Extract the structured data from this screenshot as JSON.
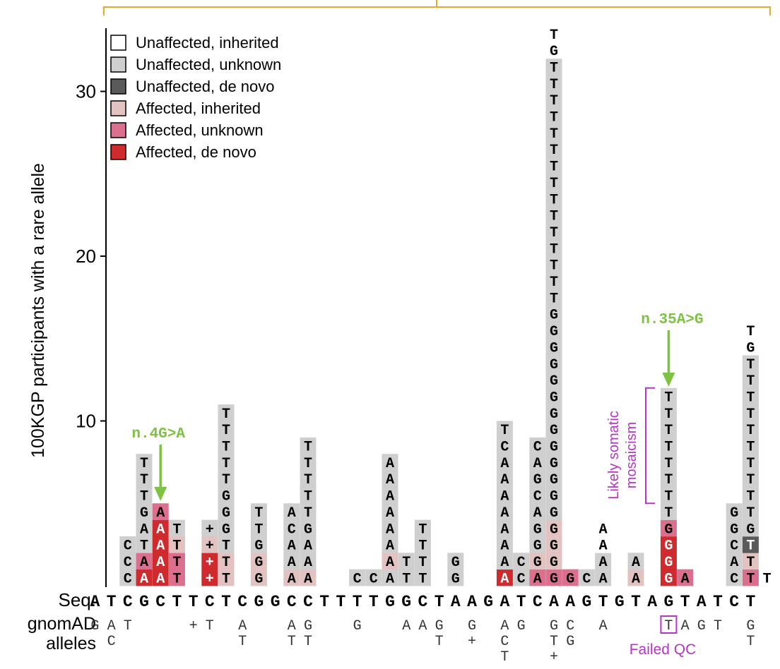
{
  "chart_data": {
    "type": "bar",
    "title": "",
    "xlabel": "",
    "ylabel": "100KGP participants with a rare allele",
    "ylim": [
      0,
      34
    ],
    "yticks": [
      10,
      20,
      30
    ],
    "legend_placement": "top-left",
    "legend": [
      {
        "key": "UI",
        "label": "Unaffected, inherited",
        "color": "#ffffff"
      },
      {
        "key": "UU",
        "label": "Unaffected, unknown",
        "color": "#cfcfcf"
      },
      {
        "key": "UD",
        "label": "Unaffected, de novo",
        "color": "#5a5a5a"
      },
      {
        "key": "AI",
        "label": "Affected, inherited",
        "color": "#e3c3c1"
      },
      {
        "key": "AU",
        "label": "Affected, unknown",
        "color": "#dc6e8e"
      },
      {
        "key": "AD",
        "label": "Affected, de novo",
        "color": "#cf2a2e"
      }
    ],
    "sequence_label": "Seq.",
    "sequence": [
      "A",
      "T",
      "C",
      "G",
      "C",
      "T",
      "T",
      "C",
      "T",
      "C",
      "G",
      "G",
      "C",
      "C",
      "T",
      "T",
      "T",
      "T",
      "G",
      "G",
      "C",
      "T",
      "A",
      "A",
      "G",
      "A",
      "T",
      "C",
      "A",
      "A",
      "G",
      "T",
      "G",
      "T",
      "A",
      "G",
      "T",
      "A",
      "T",
      "C",
      "T"
    ],
    "positions": [
      {
        "pos": 2,
        "alleles": [
          "C",
          "C",
          "C"
        ],
        "cats": [
          "UU",
          "UU",
          "UU"
        ]
      },
      {
        "pos": 3,
        "alleles": [
          "A",
          "A",
          "T",
          "A",
          "G",
          "T",
          "T",
          "T"
        ],
        "cats": [
          "AD",
          "AU",
          "UU",
          "UU",
          "UU",
          "UU",
          "UU",
          "UU"
        ]
      },
      {
        "pos": 4,
        "alleles": [
          "A",
          "A",
          "A",
          "A",
          "A"
        ],
        "cats": [
          "AD",
          "AD",
          "AD",
          "AD",
          "AU"
        ]
      },
      {
        "pos": 5,
        "alleles": [
          "T",
          "T",
          "T",
          "T"
        ],
        "cats": [
          "AU",
          "AU",
          "AI",
          "UU"
        ]
      },
      {
        "pos": 7,
        "alleles": [
          "+",
          "+",
          "+",
          "+"
        ],
        "cats": [
          "AD",
          "AD",
          "AI",
          "UU"
        ]
      },
      {
        "pos": 8,
        "alleles": [
          "T",
          "T",
          "T",
          "G",
          "G",
          "G",
          "T",
          "T",
          "T",
          "T",
          "T"
        ],
        "cats": [
          "AI",
          "AI",
          "UU",
          "UU",
          "UU",
          "UU",
          "UU",
          "UU",
          "UU",
          "UU",
          "UU"
        ]
      },
      {
        "pos": 10,
        "alleles": [
          "G",
          "G",
          "G",
          "T",
          "T"
        ],
        "cats": [
          "AI",
          "AI",
          "UU",
          "UU",
          "UU"
        ]
      },
      {
        "pos": 12,
        "alleles": [
          "A",
          "A",
          "A",
          "C",
          "A"
        ],
        "cats": [
          "AI",
          "UU",
          "UU",
          "UU",
          "UU"
        ]
      },
      {
        "pos": 13,
        "alleles": [
          "A",
          "A",
          "A",
          "G",
          "T",
          "T",
          "T",
          "T",
          "T"
        ],
        "cats": [
          "AI",
          "UU",
          "UU",
          "UU",
          "UU",
          "UU",
          "UU",
          "UU",
          "UU"
        ]
      },
      {
        "pos": 16,
        "alleles": [
          "C"
        ],
        "cats": [
          "UU"
        ]
      },
      {
        "pos": 17,
        "alleles": [
          "C"
        ],
        "cats": [
          "UU"
        ]
      },
      {
        "pos": 18,
        "alleles": [
          "A",
          "A",
          "A",
          "A",
          "A",
          "A",
          "A",
          "A"
        ],
        "cats": [
          "UU",
          "AI",
          "UU",
          "UU",
          "UU",
          "UU",
          "UU",
          "UU"
        ]
      },
      {
        "pos": 19,
        "alleles": [
          "T",
          "T"
        ],
        "cats": [
          "UU",
          "UU"
        ]
      },
      {
        "pos": 20,
        "alleles": [
          "T",
          "T",
          "T",
          "T"
        ],
        "cats": [
          "UU",
          "UU",
          "UU",
          "UU"
        ]
      },
      {
        "pos": 22,
        "alleles": [
          "G",
          "G"
        ],
        "cats": [
          "UU",
          "UU"
        ]
      },
      {
        "pos": 25,
        "alleles": [
          "A",
          "A",
          "A",
          "A",
          "A",
          "A",
          "A",
          "A",
          "C",
          "T"
        ],
        "cats": [
          "AD",
          "UU",
          "UU",
          "UU",
          "UU",
          "UU",
          "UU",
          "UU",
          "UU",
          "UU"
        ]
      },
      {
        "pos": 26,
        "alleles": [
          "C",
          "C"
        ],
        "cats": [
          "UU",
          "UU"
        ]
      },
      {
        "pos": 27,
        "alleles": [
          "A",
          "G",
          "G",
          "G",
          "A",
          "C",
          "G",
          "A",
          "C"
        ],
        "cats": [
          "AU",
          "AI",
          "UU",
          "UU",
          "UU",
          "UU",
          "UU",
          "UU",
          "UU"
        ]
      },
      {
        "pos": 28,
        "alleles": [
          "G",
          "G",
          "G",
          "G",
          "G",
          "G",
          "G",
          "G",
          "G",
          "G",
          "G",
          "G",
          "G",
          "G",
          "G",
          "G",
          "G",
          "T",
          "T",
          "T",
          "T",
          "T",
          "T",
          "T",
          "T",
          "T",
          "T",
          "T",
          "T",
          "T",
          "T",
          "T",
          "G",
          "T"
        ],
        "cats": [
          "AU",
          "AI",
          "AI",
          "AI",
          "UU",
          "UU",
          "UU",
          "UU",
          "UU",
          "UU",
          "UU",
          "UU",
          "UU",
          "UU",
          "UU",
          "UU",
          "UU",
          "UU",
          "UU",
          "UU",
          "UU",
          "UU",
          "UU",
          "UU",
          "UU",
          "UU",
          "UU",
          "UU",
          "UU",
          "UU",
          "UU",
          "UU",
          "UI",
          "UI"
        ]
      },
      {
        "pos": 29,
        "alleles": [
          "G"
        ],
        "cats": [
          "AU"
        ]
      },
      {
        "pos": 30,
        "alleles": [
          "C"
        ],
        "cats": [
          "UU"
        ]
      },
      {
        "pos": 31,
        "alleles": [
          "A",
          "A",
          "A",
          "A"
        ],
        "cats": [
          "UU",
          "UU",
          "UI",
          "UI"
        ]
      },
      {
        "pos": 33,
        "alleles": [
          "A",
          "A"
        ],
        "cats": [
          "AI",
          "UU"
        ]
      },
      {
        "pos": 35,
        "alleles": [
          "G",
          "G",
          "G",
          "G",
          "T",
          "T",
          "T",
          "T",
          "T",
          "T",
          "T",
          "T"
        ],
        "cats": [
          "AD",
          "AD",
          "AD",
          "AU",
          "UU",
          "UU",
          "UU",
          "UU",
          "UU",
          "UU",
          "UU",
          "UU"
        ]
      },
      {
        "pos": 36,
        "alleles": [
          "A"
        ],
        "cats": [
          "AU"
        ]
      },
      {
        "pos": 39,
        "alleles": [
          "C",
          "A",
          "C",
          "G",
          "G"
        ],
        "cats": [
          "UU",
          "UU",
          "UU",
          "UU",
          "UU"
        ]
      },
      {
        "pos": 40,
        "alleles": [
          "T",
          "T",
          "T",
          "G",
          "T",
          "T",
          "T",
          "T",
          "T",
          "T",
          "T",
          "T",
          "T",
          "T",
          "G",
          "T"
        ],
        "cats": [
          "AU",
          "AI",
          "UD",
          "UU",
          "UU",
          "UU",
          "UU",
          "UU",
          "UU",
          "UU",
          "UU",
          "UU",
          "UU",
          "UU",
          "UI",
          "UI"
        ]
      },
      {
        "pos": 41,
        "alleles": [
          "T"
        ],
        "cats": [
          "UI"
        ]
      }
    ],
    "gnomad_label": [
      "gnomAD",
      "alleles"
    ],
    "gnomad": [
      {
        "pos": 0,
        "alleles": [
          "G"
        ]
      },
      {
        "pos": 1,
        "alleles": [
          "A",
          "C"
        ]
      },
      {
        "pos": 2,
        "alleles": [
          "T"
        ]
      },
      {
        "pos": 6,
        "alleles": [
          "+"
        ]
      },
      {
        "pos": 7,
        "alleles": [
          "T"
        ]
      },
      {
        "pos": 9,
        "alleles": [
          "A",
          "T"
        ]
      },
      {
        "pos": 12,
        "alleles": [
          "A",
          "T"
        ]
      },
      {
        "pos": 13,
        "alleles": [
          "G",
          "T"
        ]
      },
      {
        "pos": 16,
        "alleles": [
          "G"
        ]
      },
      {
        "pos": 19,
        "alleles": [
          "A"
        ]
      },
      {
        "pos": 20,
        "alleles": [
          "A"
        ]
      },
      {
        "pos": 21,
        "alleles": [
          "G",
          "T"
        ]
      },
      {
        "pos": 23,
        "alleles": [
          "G",
          "+"
        ]
      },
      {
        "pos": 25,
        "alleles": [
          "A",
          "C",
          "T"
        ]
      },
      {
        "pos": 26,
        "alleles": [
          "G"
        ]
      },
      {
        "pos": 28,
        "alleles": [
          "G",
          "T",
          "+"
        ]
      },
      {
        "pos": 29,
        "alleles": [
          "C",
          "G"
        ]
      },
      {
        "pos": 31,
        "alleles": [
          "A"
        ]
      },
      {
        "pos": 35,
        "alleles": [
          "T"
        ],
        "boxed": true
      },
      {
        "pos": 36,
        "alleles": [
          "A"
        ]
      },
      {
        "pos": 37,
        "alleles": [
          "G"
        ]
      },
      {
        "pos": 38,
        "alleles": [
          "T"
        ]
      },
      {
        "pos": 40,
        "alleles": [
          "G",
          "T"
        ]
      }
    ],
    "annotations": {
      "n4": {
        "text": "n.4G>A",
        "pos": 4
      },
      "n35": {
        "text": "n.35A>G",
        "pos": 35
      },
      "mosaic": {
        "line1": "Likely somatic",
        "line2": "mosaicism",
        "from": 5,
        "to": 12
      },
      "failed_qc": {
        "text": "Failed QC"
      }
    },
    "colors": {
      "green": "#7dc243",
      "purple": "#b535c4",
      "bracket": "#e6a92a"
    }
  }
}
